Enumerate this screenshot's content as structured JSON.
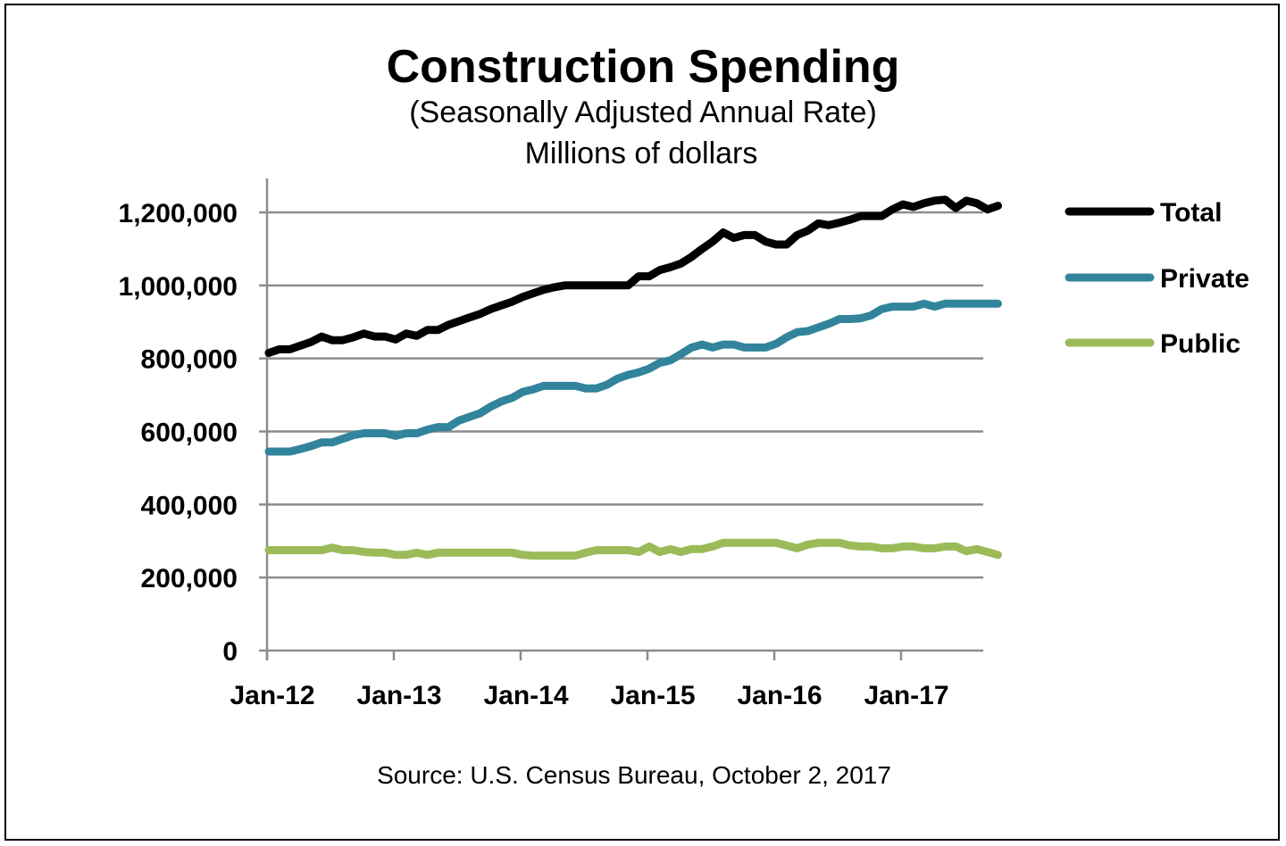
{
  "chart_data": {
    "type": "line",
    "title": "Construction Spending",
    "subtitle": "(Seasonally Adjusted Annual Rate)",
    "unit_label": "Millions  of dollars",
    "source": "Source: U.S. Census Bureau, October 2, 2017",
    "xlabel": "",
    "ylabel": "",
    "x_start": "Jan-12",
    "x_frequency": "monthly",
    "x_ticks": [
      "Jan-12",
      "Jan-13",
      "Jan-14",
      "Jan-15",
      "Jan-16",
      "Jan-17"
    ],
    "y_ticks": [
      "0",
      "200,000",
      "400,000",
      "600,000",
      "800,000",
      "1,000,000",
      "1,200,000"
    ],
    "ylim": [
      0,
      1200000
    ],
    "grid": true,
    "legend": "right",
    "series": [
      {
        "name": "Total",
        "color": "#000000",
        "values": [
          815000,
          825000,
          825000,
          835000,
          845000,
          860000,
          850000,
          850000,
          858000,
          868000,
          860000,
          860000,
          852000,
          868000,
          862000,
          878000,
          878000,
          892000,
          902000,
          912000,
          922000,
          935000,
          945000,
          955000,
          968000,
          978000,
          988000,
          995000,
          1000000,
          1000000,
          1000000,
          1000000,
          1000000,
          1000000,
          1000000,
          1025000,
          1025000,
          1042000,
          1050000,
          1060000,
          1078000,
          1100000,
          1120000,
          1145000,
          1130000,
          1138000,
          1138000,
          1120000,
          1112000,
          1112000,
          1138000,
          1150000,
          1170000,
          1165000,
          1172000,
          1180000,
          1190000,
          1190000,
          1190000,
          1208000,
          1222000,
          1215000,
          1225000,
          1232000,
          1235000,
          1212000,
          1232000,
          1225000,
          1208000,
          1218000
        ]
      },
      {
        "name": "Private",
        "color": "#31849B",
        "values": [
          545000,
          545000,
          545000,
          552000,
          560000,
          570000,
          570000,
          580000,
          590000,
          595000,
          595000,
          595000,
          588000,
          595000,
          595000,
          605000,
          612000,
          612000,
          630000,
          640000,
          650000,
          668000,
          682000,
          692000,
          708000,
          715000,
          725000,
          725000,
          725000,
          725000,
          718000,
          718000,
          728000,
          745000,
          755000,
          762000,
          772000,
          788000,
          795000,
          812000,
          830000,
          838000,
          830000,
          838000,
          838000,
          830000,
          830000,
          830000,
          840000,
          858000,
          872000,
          875000,
          885000,
          895000,
          908000,
          908000,
          910000,
          918000,
          935000,
          942000,
          942000,
          942000,
          950000,
          942000,
          950000,
          950000,
          950000,
          950000,
          950000,
          950000
        ]
      },
      {
        "name": "Public",
        "color": "#9BBB59",
        "values": [
          275000,
          275000,
          275000,
          275000,
          275000,
          275000,
          282000,
          275000,
          275000,
          270000,
          268000,
          268000,
          262000,
          262000,
          268000,
          262000,
          268000,
          268000,
          268000,
          268000,
          268000,
          268000,
          268000,
          268000,
          262000,
          260000,
          260000,
          260000,
          260000,
          260000,
          268000,
          275000,
          275000,
          275000,
          275000,
          270000,
          285000,
          270000,
          278000,
          270000,
          278000,
          278000,
          285000,
          295000,
          295000,
          295000,
          295000,
          295000,
          295000,
          288000,
          280000,
          290000,
          295000,
          295000,
          295000,
          288000,
          285000,
          285000,
          280000,
          280000,
          285000,
          285000,
          280000,
          280000,
          285000,
          285000,
          272000,
          278000,
          270000,
          262000
        ]
      }
    ]
  }
}
